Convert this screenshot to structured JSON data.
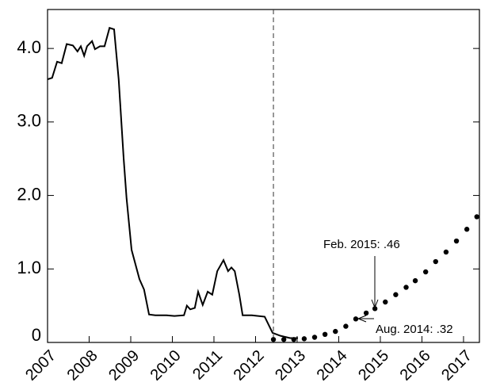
{
  "chart_data": {
    "type": "line",
    "xlim": [
      2007,
      2017.42
    ],
    "ylim": [
      0,
      4.53
    ],
    "xticks": [
      2007,
      2008,
      2009,
      2010,
      2011,
      2012,
      2013,
      2014,
      2015,
      2016,
      2017
    ],
    "yticks": [
      0,
      {
        "value": 1,
        "label": "1.0"
      },
      {
        "value": 2,
        "label": "2.0"
      },
      {
        "value": 3,
        "label": "3.0"
      },
      {
        "value": 4,
        "label": "4.0"
      }
    ],
    "vline": 2012.43,
    "series": [
      {
        "style": "line",
        "color": "#000000",
        "x": [
          2007.0,
          2007.11,
          2007.23,
          2007.34,
          2007.46,
          2007.61,
          2007.72,
          2007.8,
          2007.88,
          2007.95,
          2008.07,
          2008.14,
          2008.26,
          2008.37,
          2008.49,
          2008.6,
          2008.71,
          2008.83,
          2008.9,
          2009.02,
          2009.21,
          2009.32,
          2009.44,
          2009.59,
          2009.86,
          2010.05,
          2010.28,
          2010.35,
          2010.43,
          2010.54,
          2010.62,
          2010.73,
          2010.85,
          2010.96,
          2011.08,
          2011.23,
          2011.34,
          2011.42,
          2011.5,
          2011.61,
          2011.69,
          2011.91,
          2012.22,
          2012.41,
          2012.6,
          2012.83,
          2013.02
        ],
        "values": [
          3.58,
          3.6,
          3.82,
          3.8,
          4.06,
          4.04,
          3.96,
          4.03,
          3.9,
          4.03,
          4.1,
          3.99,
          4.03,
          4.03,
          4.28,
          4.26,
          3.58,
          2.5,
          1.96,
          1.26,
          0.86,
          0.72,
          0.38,
          0.37,
          0.37,
          0.36,
          0.37,
          0.5,
          0.45,
          0.47,
          0.69,
          0.51,
          0.69,
          0.65,
          0.97,
          1.12,
          0.97,
          1.02,
          0.97,
          0.65,
          0.37,
          0.37,
          0.35,
          0.13,
          0.09,
          0.06,
          0.06
        ]
      },
      {
        "style": "dots",
        "color": "#000000",
        "x": [
          2012.43,
          2012.68,
          2012.92,
          2013.17,
          2013.42,
          2013.67,
          2013.92,
          2014.17,
          2014.41,
          2014.66,
          2014.87,
          2015.12,
          2015.37,
          2015.62,
          2015.84,
          2016.09,
          2016.33,
          2016.58,
          2016.83,
          2017.08,
          2017.32
        ],
        "values": [
          0.04,
          0.04,
          0.04,
          0.05,
          0.07,
          0.11,
          0.15,
          0.22,
          0.32,
          0.4,
          0.46,
          0.55,
          0.65,
          0.75,
          0.84,
          0.96,
          1.1,
          1.23,
          1.38,
          1.54,
          1.71
        ]
      }
    ],
    "annotations": [
      "Feb. 2015: .46",
      "Aug. 2014: .32"
    ]
  }
}
